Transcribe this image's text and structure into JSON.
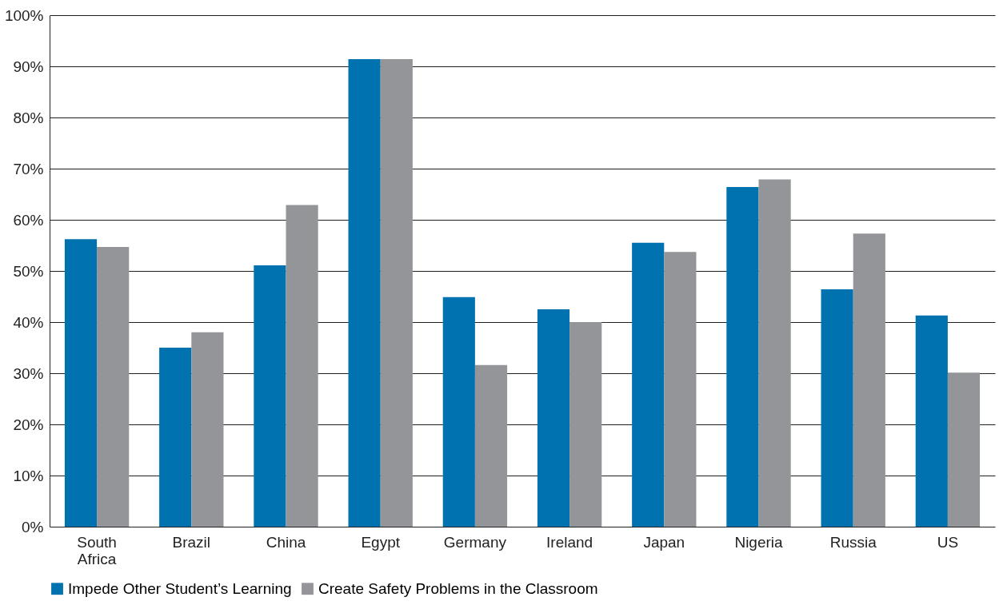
{
  "chart_data": {
    "type": "bar",
    "categories": [
      "South Africa",
      "Brazil",
      "China",
      "Egypt",
      "Germany",
      "Ireland",
      "Japan",
      "Nigeria",
      "Russia",
      "US"
    ],
    "series": [
      {
        "name": "Impede Other Student’s Learning",
        "color": "#0072b0",
        "values": [
          56.2,
          35.0,
          51.1,
          91.4,
          44.9,
          42.5,
          55.5,
          66.4,
          46.4,
          41.3
        ]
      },
      {
        "name": "Create Safety Problems in the Classroom",
        "color": "#939598",
        "values": [
          54.7,
          38.0,
          62.9,
          91.4,
          31.6,
          40.0,
          53.7,
          67.9,
          57.3,
          30.1
        ]
      }
    ],
    "ylim": [
      0,
      100
    ],
    "yticks": [
      {
        "value": 0,
        "label": "0%"
      },
      {
        "value": 10,
        "label": "10%"
      },
      {
        "value": 20,
        "label": "20%"
      },
      {
        "value": 30,
        "label": "30%"
      },
      {
        "value": 40,
        "label": "40%"
      },
      {
        "value": 50,
        "label": "50%"
      },
      {
        "value": 60,
        "label": "60%"
      },
      {
        "value": 70,
        "label": "70%"
      },
      {
        "value": 80,
        "label": "80%"
      },
      {
        "value": 90,
        "label": "90%"
      },
      {
        "value": 100,
        "label": "100%"
      }
    ],
    "grid": "y",
    "legend": "bottom"
  }
}
